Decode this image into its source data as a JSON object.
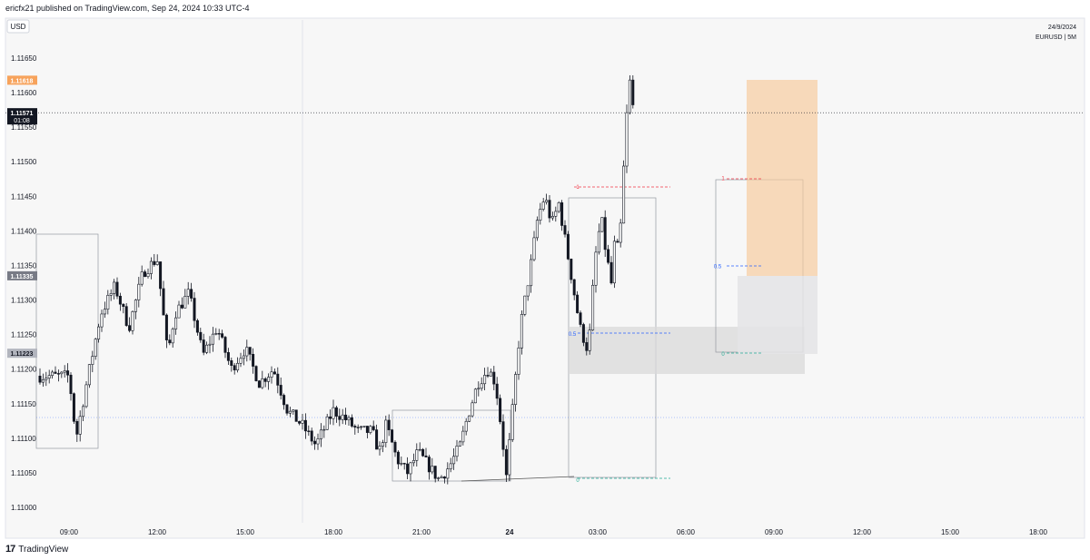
{
  "header": {
    "publisher": "ericfx21 published on TradingView.com, Sep 24, 2024 10:33 UTC-4"
  },
  "footer": {
    "brand": "TradingView",
    "logo_glyph": "17"
  },
  "chart_meta": {
    "date": "24/9/2024",
    "symbol_tf": "EURUSD | 5M",
    "currency": "USD"
  },
  "chart_data": {
    "type": "candlestick",
    "symbol": "EURUSD",
    "timeframe": "5M",
    "ylim": [
      1.1096,
      1.117
    ],
    "y_ticks": [
      "1.11650",
      "1.11600",
      "1.11550",
      "1.11500",
      "1.11450",
      "1.11400",
      "1.11350",
      "1.11300",
      "1.11250",
      "1.11200",
      "1.11150",
      "1.11100",
      "1.11050",
      "1.11000"
    ],
    "x_ticks": [
      "09:00",
      "12:00",
      "15:00",
      "18:00",
      "21:00",
      "24",
      "03:00",
      "06:00",
      "09:00",
      "12:00",
      "15:00",
      "18:00"
    ],
    "price_badges": [
      {
        "value": "1.11618",
        "color": "#f7a35c"
      },
      {
        "value": "1.11571",
        "sub": "01:08",
        "color": "#131722"
      },
      {
        "value": "1.11335",
        "color": "#787b86"
      },
      {
        "value": "1.11223",
        "color": "#b2b5be"
      }
    ],
    "current_price": 1.11571,
    "fib_labels": [
      {
        "text": "1",
        "price": 1.11465,
        "color": "#f23645"
      },
      {
        "text": "0.5",
        "price": 1.11252,
        "color": "#2962ff"
      },
      {
        "text": "0",
        "price": 1.11041,
        "color": "#22ab94"
      },
      {
        "text": "1",
        "price": 1.11477,
        "color": "#f23645"
      },
      {
        "text": "0.5",
        "price": 1.1135,
        "color": "#2962ff"
      },
      {
        "text": "0",
        "price": 1.11223,
        "color": "#22ab94"
      }
    ],
    "path": [
      [
        0,
        1.1119
      ],
      [
        0.02,
        1.111
      ],
      [
        0.05,
        1.1118
      ],
      [
        0.09,
        1.1128
      ],
      [
        0.13,
        1.1132
      ],
      [
        0.17,
        1.1126
      ],
      [
        0.21,
        1.1134
      ],
      [
        0.25,
        1.1136
      ],
      [
        0.28,
        1.1122
      ],
      [
        0.3,
        1.1128
      ],
      [
        0.34,
        1.1131
      ],
      [
        0.38,
        1.1122
      ],
      [
        0.42,
        1.1126
      ],
      [
        0.46,
        1.112
      ],
      [
        0.5,
        1.1123
      ],
      [
        0.54,
        1.1118
      ],
      [
        0.58,
        1.112
      ],
      [
        0.62,
        1.1114
      ],
      [
        0.66,
        1.1112
      ],
      [
        0.7,
        1.1109
      ],
      [
        0.73,
        1.1112
      ],
      [
        0.75,
        1.1114
      ],
      [
        0.78,
        1.1113
      ],
      [
        0.82,
        1.1111
      ],
      [
        0.86,
        1.1111
      ],
      [
        0.88,
        1.1108
      ],
      [
        0.9,
        1.1112
      ],
      [
        0.93,
        1.1107
      ],
      [
        0.96,
        1.1105
      ],
      [
        0.99,
        1.1108
      ],
      [
        1.02,
        1.1106
      ],
      [
        1.05,
        1.1104
      ],
      [
        1.08,
        1.1106
      ],
      [
        1.11,
        1.1109
      ],
      [
        1.13,
        1.1113
      ],
      [
        1.16,
        1.1118
      ],
      [
        1.19,
        1.112
      ],
      [
        1.21,
        1.1118
      ],
      [
        1.23,
        1.111
      ],
      [
        1.24,
        1.1104
      ],
      [
        1.26,
        1.1115
      ],
      [
        1.28,
        1.1126
      ],
      [
        1.31,
        1.1135
      ],
      [
        1.33,
        1.1142
      ],
      [
        1.35,
        1.1145
      ],
      [
        1.37,
        1.1141
      ],
      [
        1.39,
        1.1144
      ],
      [
        1.41,
        1.1138
      ],
      [
        1.43,
        1.1132
      ],
      [
        1.45,
        1.1126
      ],
      [
        1.47,
        1.1123
      ],
      [
        1.48,
        1.1126
      ],
      [
        1.49,
        1.1135
      ],
      [
        1.51,
        1.1142
      ],
      [
        1.52,
        1.1138
      ],
      [
        1.54,
        1.1132
      ],
      [
        1.55,
        1.114
      ],
      [
        1.56,
        1.1136
      ],
      [
        1.58,
        1.1155
      ],
      [
        1.59,
        1.1162
      ],
      [
        1.6,
        1.1158
      ]
    ]
  }
}
